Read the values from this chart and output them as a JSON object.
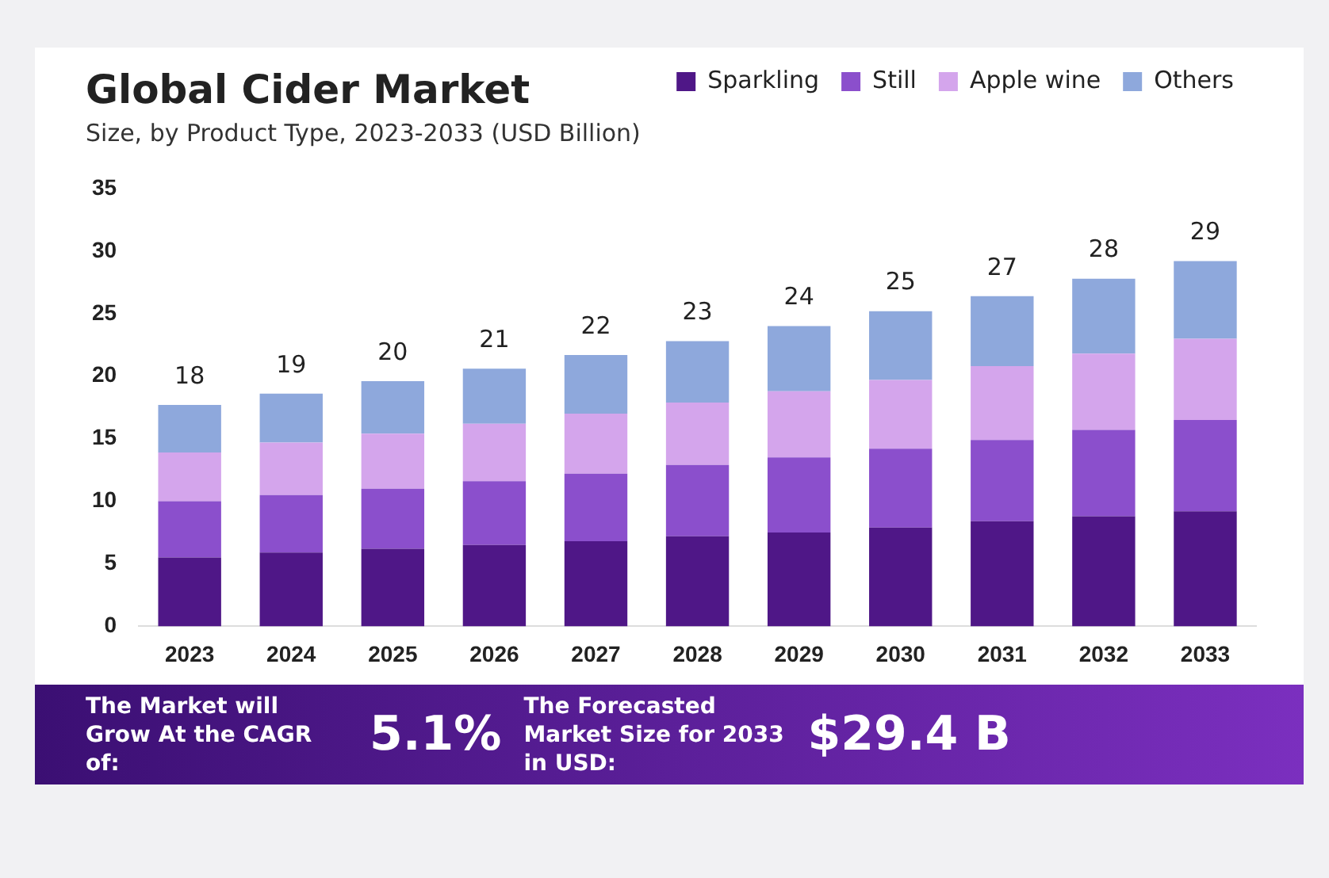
{
  "chart_data": {
    "type": "bar",
    "stacked": true,
    "title": "Global Cider Market",
    "subtitle": "Size, by Product Type, 2023-2033 (USD Billion)",
    "categories": [
      "2023",
      "2024",
      "2025",
      "2026",
      "2027",
      "2028",
      "2029",
      "2030",
      "2031",
      "2032",
      "2033"
    ],
    "series": [
      {
        "name": "Sparkling",
        "color": "#4f1787",
        "values": [
          5.5,
          5.9,
          6.2,
          6.5,
          6.8,
          7.2,
          7.5,
          7.9,
          8.4,
          8.8,
          9.2
        ]
      },
      {
        "name": "Still",
        "color": "#8b4fcc",
        "values": [
          4.5,
          4.6,
          4.8,
          5.1,
          5.4,
          5.7,
          6.0,
          6.3,
          6.5,
          6.9,
          7.3
        ]
      },
      {
        "name": "Apple wine",
        "color": "#d4a5ec",
        "values": [
          3.9,
          4.2,
          4.4,
          4.6,
          4.8,
          5.0,
          5.3,
          5.5,
          5.9,
          6.1,
          6.5
        ]
      },
      {
        "name": "Others",
        "color": "#8ea8dc",
        "values": [
          3.8,
          3.9,
          4.2,
          4.4,
          4.7,
          4.9,
          5.2,
          5.5,
          5.6,
          6.0,
          6.2
        ]
      }
    ],
    "totals": [
      "18",
      "19",
      "20",
      "21",
      "22",
      "23",
      "24",
      "25",
      "27",
      "28",
      "29"
    ],
    "ylim": [
      0,
      35
    ],
    "yticks": [
      0,
      5,
      10,
      15,
      20,
      25,
      30,
      35
    ],
    "grid": false,
    "legend": "top right",
    "annotations": [
      "The Market will Grow At the CAGR of:",
      "5.1%",
      "The Forecasted Market Size for 2033 in USD:",
      "$29.4 B"
    ]
  }
}
